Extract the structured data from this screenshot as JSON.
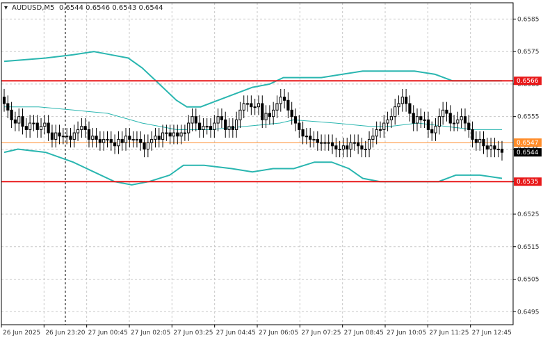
{
  "header": {
    "symbol": "AUDUSD,M5",
    "ohlc": "0.6544 0.6546 0.6543 0.6544"
  },
  "colors": {
    "background": "#ffffff",
    "grid": "#c8c8c8",
    "candle": "#000000",
    "bands": "#2ab6b0",
    "level_red": "#e8191a",
    "level_orange": "#ff8c2a",
    "current_price_bg": "#000000"
  },
  "chart_data": {
    "type": "candlestick",
    "symbol": "AUDUSD",
    "timeframe": "M5",
    "ylim": [
      0.6491,
      0.659
    ],
    "y_ticks": [
      "0.6585",
      "0.6575",
      "0.6565",
      "0.6555",
      "0.6545",
      "0.6535",
      "0.6525",
      "0.6515",
      "0.6505",
      "0.6495"
    ],
    "x_ticks": [
      "26 Jun 2025",
      "26 Jun 23:20",
      "27 Jun 00:45",
      "27 Jun 02:05",
      "27 Jun 03:25",
      "27 Jun 04:45",
      "27 Jun 06:05",
      "27 Jun 07:25",
      "27 Jun 08:45",
      "27 Jun 10:05",
      "27 Jun 11:25",
      "27 Jun 12:45"
    ],
    "grid": true,
    "levels": [
      {
        "label": "0.6566",
        "value": 0.6566,
        "color": "#e8191a"
      },
      {
        "label": "0.6547",
        "value": 0.6547,
        "color": "#ff8c2a"
      },
      {
        "label": "0.6535",
        "value": 0.6535,
        "color": "#e8191a"
      }
    ],
    "current_price": {
      "label": "0.6544",
      "value": 0.6544
    },
    "close_series": [
      0.6559,
      0.6557,
      0.6554,
      0.6553,
      0.6555,
      0.6552,
      0.6551,
      0.6553,
      0.6553,
      0.6551,
      0.6552,
      0.6553,
      0.655,
      0.6548,
      0.655,
      0.6549,
      0.6549,
      0.6549,
      0.6548,
      0.655,
      0.6551,
      0.6552,
      0.6551,
      0.6548,
      0.6549,
      0.6548,
      0.6547,
      0.6548,
      0.6548,
      0.6547,
      0.6546,
      0.6548,
      0.6547,
      0.6549,
      0.6548,
      0.6548,
      0.6548,
      0.6547,
      0.6545,
      0.6547,
      0.6548,
      0.6549,
      0.6548,
      0.655,
      0.655,
      0.6549,
      0.655,
      0.6549,
      0.655,
      0.655,
      0.6553,
      0.6555,
      0.6553,
      0.6551,
      0.6552,
      0.6552,
      0.6551,
      0.6553,
      0.6555,
      0.6554,
      0.6551,
      0.6552,
      0.6551,
      0.6554,
      0.6557,
      0.6559,
      0.6559,
      0.6558,
      0.6558,
      0.6559,
      0.6554,
      0.6556,
      0.6555,
      0.6557,
      0.6559,
      0.6561,
      0.656,
      0.6557,
      0.6555,
      0.6553,
      0.6551,
      0.6549,
      0.6549,
      0.6548,
      0.6548,
      0.6547,
      0.6547,
      0.6547,
      0.6547,
      0.6546,
      0.6545,
      0.6545,
      0.6546,
      0.6545,
      0.6547,
      0.6547,
      0.6546,
      0.6545,
      0.6545,
      0.6548,
      0.6549,
      0.6551,
      0.6551,
      0.6553,
      0.6554,
      0.6555,
      0.6558,
      0.6559,
      0.6561,
      0.6559,
      0.6556,
      0.6553,
      0.6555,
      0.6554,
      0.6554,
      0.6551,
      0.655,
      0.6552,
      0.6555,
      0.6557,
      0.6556,
      0.6553,
      0.6553,
      0.6554,
      0.6555,
      0.6553,
      0.6551,
      0.6548,
      0.6547,
      0.6548,
      0.6546,
      0.6545,
      0.6546,
      0.6545,
      0.6545,
      0.6544
    ],
    "bollinger_upper": [
      [
        0,
        0.6572
      ],
      [
        60,
        0.6573
      ],
      [
        100,
        0.6574
      ],
      [
        130,
        0.6575
      ],
      [
        155,
        0.6574
      ],
      [
        180,
        0.6573
      ],
      [
        200,
        0.657
      ],
      [
        225,
        0.6565
      ],
      [
        250,
        0.656
      ],
      [
        265,
        0.6558
      ],
      [
        285,
        0.6558
      ],
      [
        310,
        0.656
      ],
      [
        335,
        0.6562
      ],
      [
        360,
        0.6564
      ],
      [
        385,
        0.6565
      ],
      [
        405,
        0.6567
      ],
      [
        430,
        0.6567
      ],
      [
        460,
        0.6567
      ],
      [
        490,
        0.6568
      ],
      [
        520,
        0.6569
      ],
      [
        545,
        0.6569
      ],
      [
        570,
        0.6569
      ],
      [
        595,
        0.6569
      ],
      [
        625,
        0.6568
      ],
      [
        650,
        0.6566
      ],
      [
        680,
        0.6566
      ],
      [
        722,
        0.6566
      ]
    ],
    "bollinger_middle": [
      [
        0,
        0.6558
      ],
      [
        50,
        0.6558
      ],
      [
        100,
        0.6557
      ],
      [
        150,
        0.6556
      ],
      [
        200,
        0.6553
      ],
      [
        250,
        0.6551
      ],
      [
        300,
        0.6551
      ],
      [
        350,
        0.6552
      ],
      [
        400,
        0.6553
      ],
      [
        420,
        0.6554
      ],
      [
        480,
        0.6553
      ],
      [
        530,
        0.6552
      ],
      [
        560,
        0.6552
      ],
      [
        600,
        0.6553
      ],
      [
        640,
        0.6552
      ],
      [
        680,
        0.6551
      ],
      [
        722,
        0.6551
      ]
    ],
    "bollinger_lower": [
      [
        0,
        0.6544
      ],
      [
        20,
        0.6545
      ],
      [
        60,
        0.6544
      ],
      [
        100,
        0.6541
      ],
      [
        130,
        0.6538
      ],
      [
        160,
        0.6535
      ],
      [
        185,
        0.6534
      ],
      [
        210,
        0.6535
      ],
      [
        240,
        0.6537
      ],
      [
        260,
        0.654
      ],
      [
        290,
        0.654
      ],
      [
        330,
        0.6539
      ],
      [
        360,
        0.6538
      ],
      [
        390,
        0.6539
      ],
      [
        420,
        0.6539
      ],
      [
        450,
        0.6541
      ],
      [
        475,
        0.6541
      ],
      [
        500,
        0.6539
      ],
      [
        520,
        0.6536
      ],
      [
        545,
        0.6535
      ],
      [
        575,
        0.6535
      ],
      [
        605,
        0.6535
      ],
      [
        630,
        0.6535
      ],
      [
        655,
        0.6537
      ],
      [
        690,
        0.6537
      ],
      [
        722,
        0.6536
      ]
    ]
  }
}
